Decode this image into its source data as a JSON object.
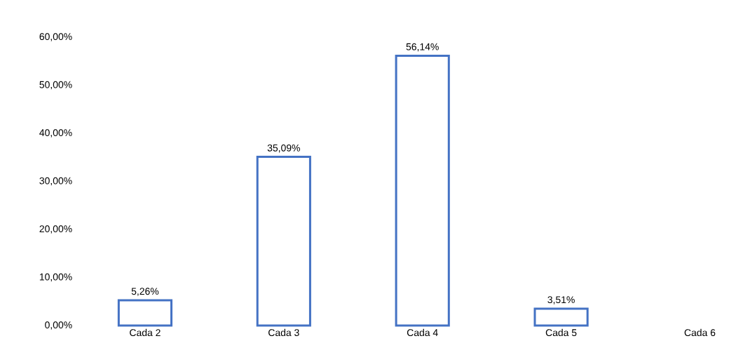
{
  "chart_data": {
    "type": "bar",
    "categories": [
      "Cada 2",
      "Cada 3",
      "Cada 4",
      "Cada 5",
      "Cada 6"
    ],
    "values": [
      5.26,
      35.09,
      56.14,
      3.51,
      null
    ],
    "value_labels": [
      "5,26%",
      "35,09%",
      "56,14%",
      "3,51%",
      null
    ],
    "color": "#4472c4",
    "ylim": [
      0,
      60
    ],
    "yticks": [
      {
        "value": 0,
        "label": "0,00%"
      },
      {
        "value": 10,
        "label": "10,00%"
      },
      {
        "value": 20,
        "label": "20,00%"
      },
      {
        "value": 30,
        "label": "30,00%"
      },
      {
        "value": 40,
        "label": "40,00%"
      },
      {
        "value": 50,
        "label": "50,00%"
      },
      {
        "value": 60,
        "label": "60,00%"
      }
    ]
  }
}
